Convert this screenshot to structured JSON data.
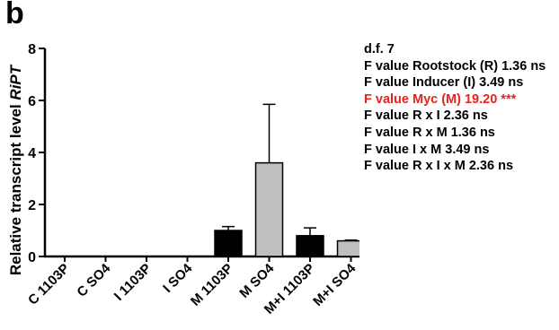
{
  "panel_label": "b",
  "stats": {
    "lines": [
      {
        "text": "d.f. 7",
        "highlight": false
      },
      {
        "text": "F value Rootstock (R) 1.36 ns",
        "highlight": false
      },
      {
        "text": "F value Inducer (I) 3.49 ns",
        "highlight": false
      },
      {
        "text": "F value Myc (M) 19.20 ***",
        "highlight": true
      },
      {
        "text": "F value R x I 2.36 ns",
        "highlight": false
      },
      {
        "text": "F value R x M 1.36 ns",
        "highlight": false
      },
      {
        "text": "F value I x M 3.49 ns",
        "highlight": false
      },
      {
        "text": "F value R x I x M 2.36 ns",
        "highlight": false
      }
    ],
    "highlight_color": "#e8231f",
    "text_color": "#000000"
  },
  "chart_data": {
    "type": "bar",
    "ylabel_prefix": "Relative transcript level ",
    "ylabel_gene": "RiPT",
    "xlabel": "",
    "ylim": [
      0,
      8
    ],
    "yticks": [
      "0",
      "2",
      "4",
      "6",
      "8"
    ],
    "grid": false,
    "categories": [
      "C 1103P",
      "C SO4",
      "I 1103P",
      "I SO4",
      "M 1103P",
      "M SO4",
      "M+I 1103P",
      "M+I SO4"
    ],
    "values": [
      0,
      0,
      0,
      0,
      1.0,
      3.6,
      0.8,
      0.6
    ],
    "errors": [
      0,
      0,
      0,
      0,
      0.15,
      2.25,
      0.3,
      0.03
    ],
    "bar_colors": [
      "#000000",
      "#bfbfbf",
      "#000000",
      "#bfbfbf",
      "#000000",
      "#bfbfbf",
      "#000000",
      "#bfbfbf"
    ]
  }
}
